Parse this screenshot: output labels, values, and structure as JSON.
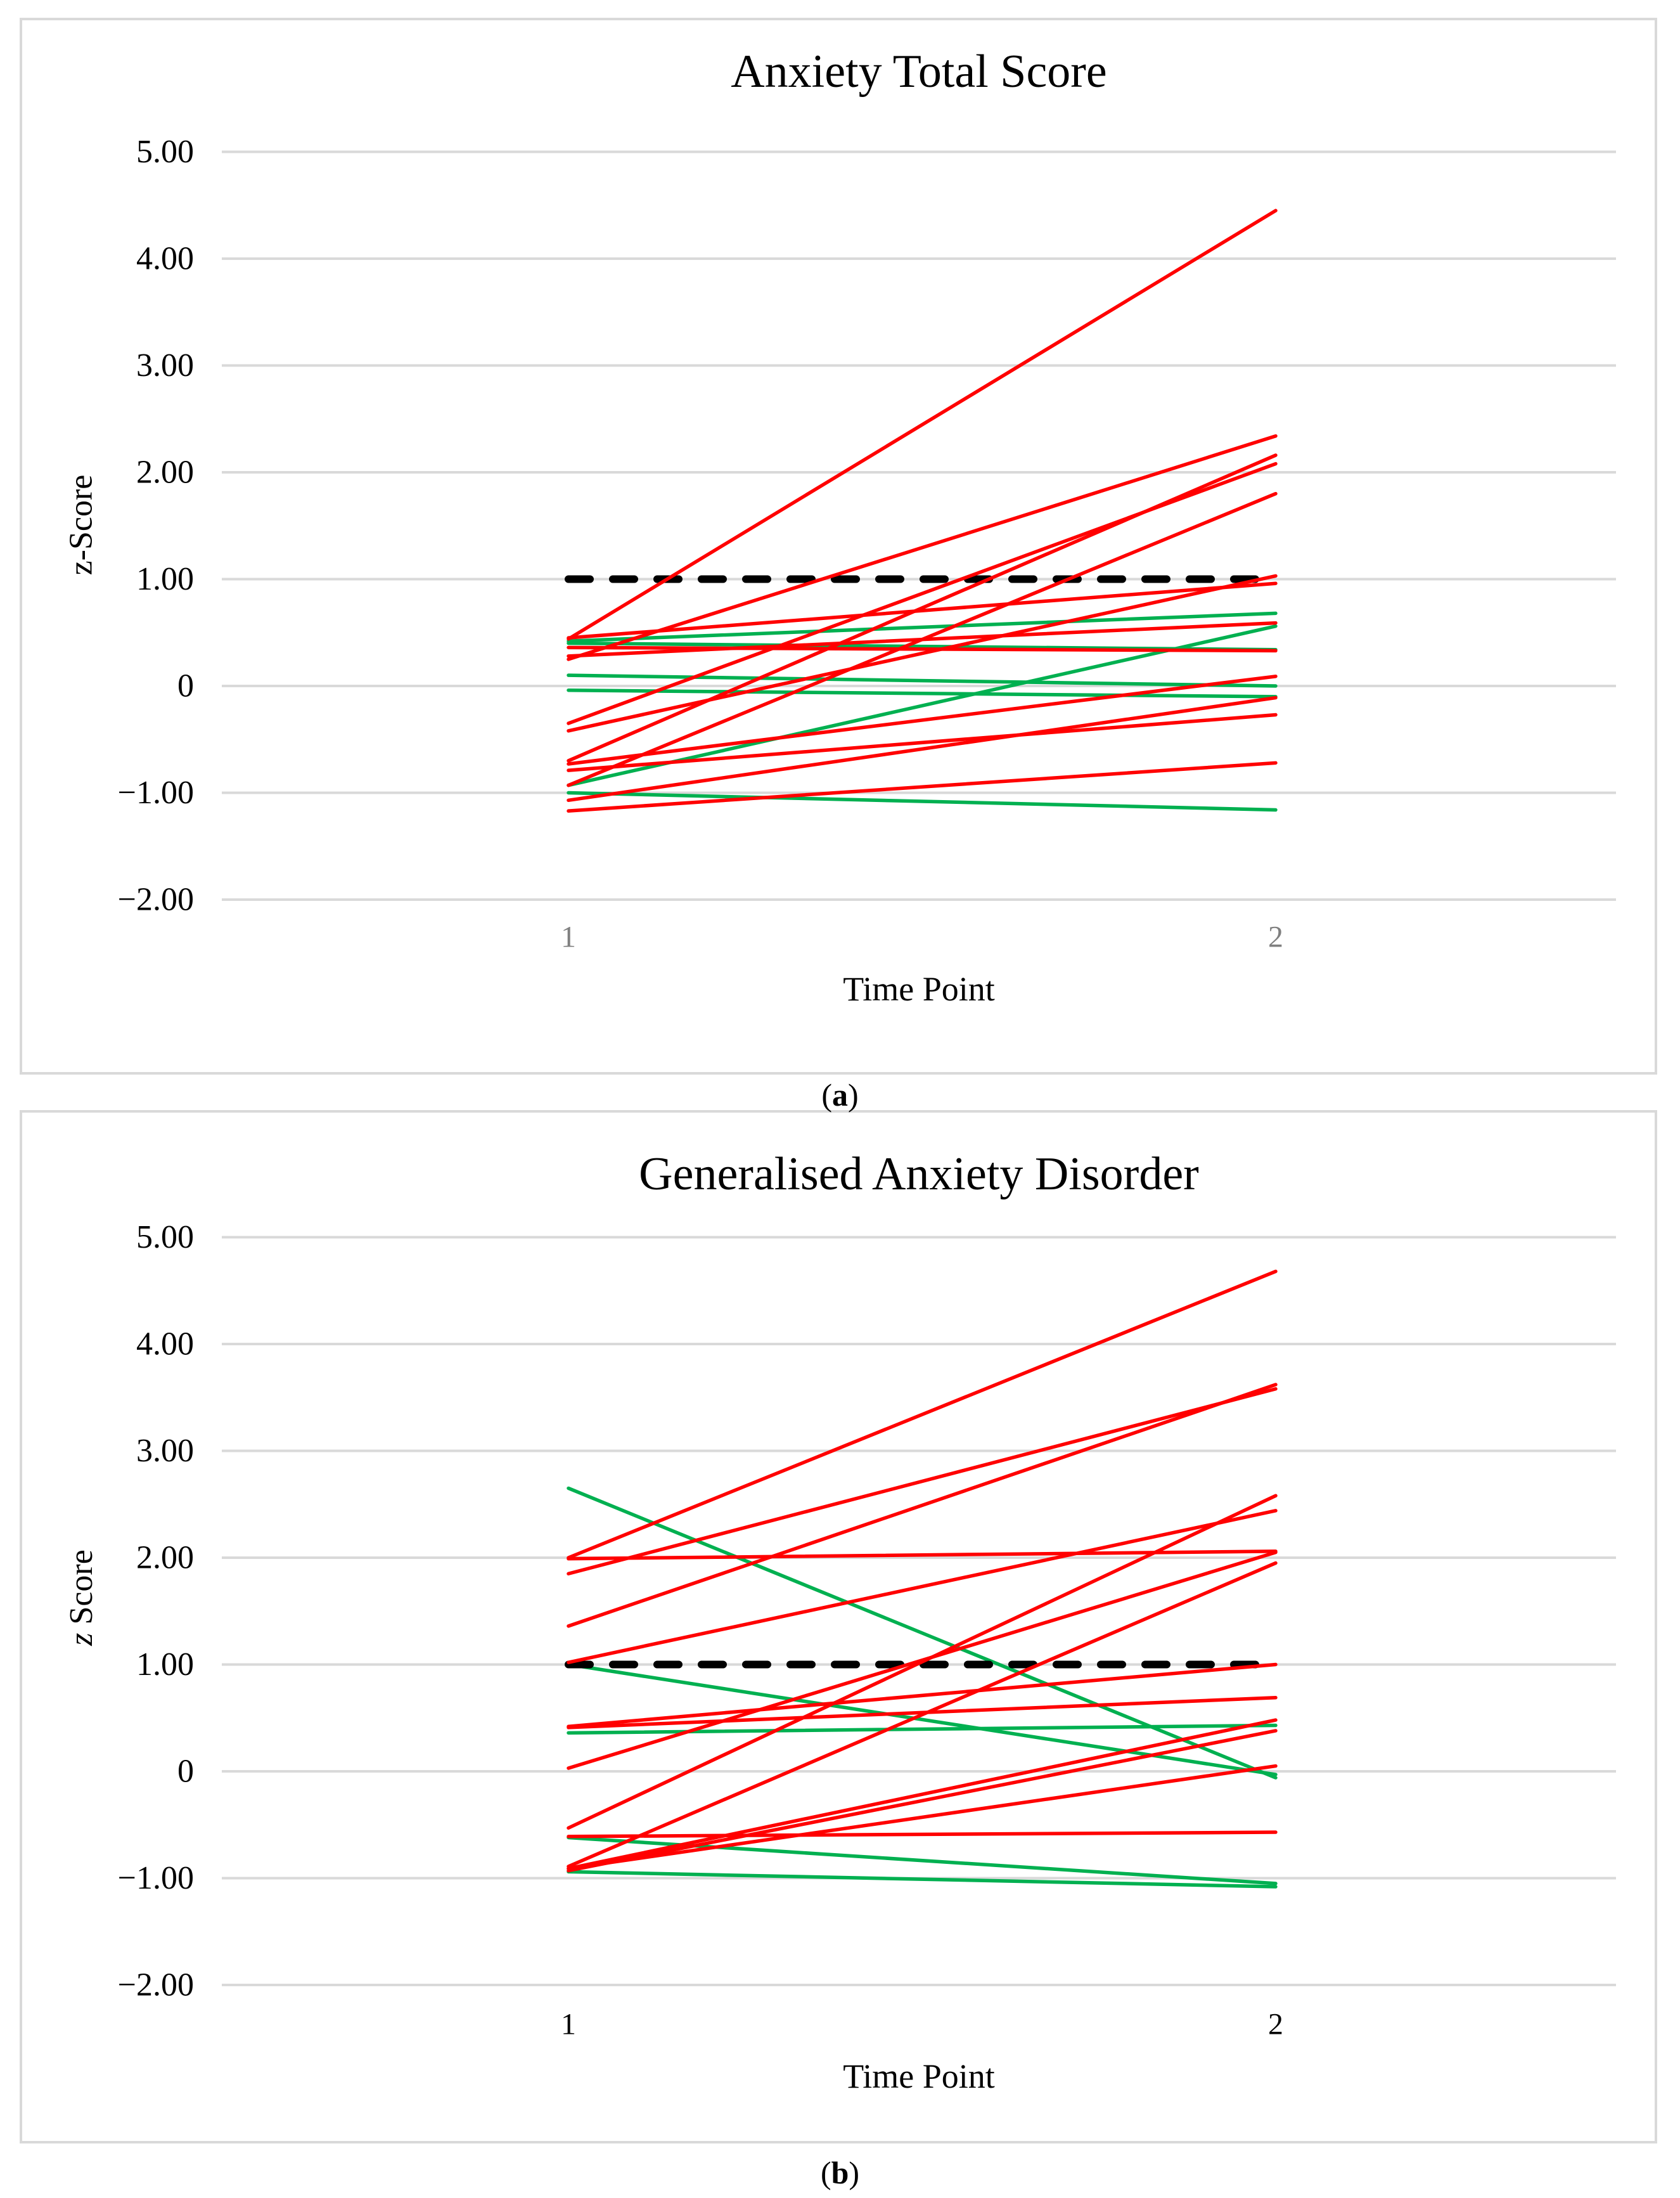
{
  "captions": {
    "a": "(a)",
    "b": "(b)"
  },
  "colors": {
    "red_series": "#FF0000",
    "green_series": "#00B050",
    "gridline": "#D9D9D9",
    "frame_border": "#D9D9D9",
    "threshold": "#000000",
    "x_tick_gray": "#7F7F7F",
    "text": "#000000",
    "background": "#FFFFFF"
  },
  "chart_data": [
    {
      "type": "line",
      "panel": "a",
      "title": "Anxiety Total Score",
      "xlabel": "Time Point",
      "ylabel": "z-Score",
      "ylabel_italic_z": false,
      "grid": true,
      "legend": false,
      "x_categories": [
        "1",
        "2"
      ],
      "x_tick_color": "#7F7F7F",
      "ylim": [
        -2,
        5
      ],
      "y_ticks": [
        {
          "label": "5.00",
          "value": 5
        },
        {
          "label": "4.00",
          "value": 4
        },
        {
          "label": "3.00",
          "value": 3
        },
        {
          "label": "2.00",
          "value": 2
        },
        {
          "label": "1.00",
          "value": 1
        },
        {
          "label": "0",
          "value": 0
        },
        {
          "label": "−1.00",
          "value": -1
        },
        {
          "label": "−2.00",
          "value": -2
        }
      ],
      "threshold_line": {
        "value": 1.0,
        "style": "dashed",
        "color": "#000000"
      },
      "series": [
        {
          "name": "red-lines",
          "color": "#FF0000",
          "points": [
            [
              0.44,
              4.45
            ],
            [
              0.45,
              0.96
            ],
            [
              0.36,
              0.33
            ],
            [
              0.28,
              0.59
            ],
            [
              0.25,
              2.34
            ],
            [
              -0.35,
              2.08
            ],
            [
              -0.42,
              1.03
            ],
            [
              -0.7,
              2.16
            ],
            [
              -0.73,
              0.09
            ],
            [
              -0.79,
              -0.27
            ],
            [
              -0.93,
              1.8
            ],
            [
              -1.07,
              -0.11
            ],
            [
              -1.17,
              -0.72
            ]
          ]
        },
        {
          "name": "green-lines",
          "color": "#00B050",
          "points": [
            [
              0.42,
              0.68
            ],
            [
              0.4,
              0.34
            ],
            [
              0.1,
              0.0
            ],
            [
              -0.04,
              -0.1
            ],
            [
              -0.93,
              0.56
            ],
            [
              -1.0,
              -1.16
            ]
          ]
        }
      ]
    },
    {
      "type": "line",
      "panel": "b",
      "title": "Generalised Anxiety Disorder",
      "xlabel": "Time Point",
      "ylabel": "z Score",
      "ylabel_italic_z": true,
      "grid": true,
      "legend": false,
      "x_categories": [
        "1",
        "2"
      ],
      "x_tick_color": "#000000",
      "ylim": [
        -2,
        5
      ],
      "y_ticks": [
        {
          "label": "5.00",
          "value": 5
        },
        {
          "label": "4.00",
          "value": 4
        },
        {
          "label": "3.00",
          "value": 3
        },
        {
          "label": "2.00",
          "value": 2
        },
        {
          "label": "1.00",
          "value": 1
        },
        {
          "label": "0",
          "value": 0
        },
        {
          "label": "−1.00",
          "value": -1
        },
        {
          "label": "−2.00",
          "value": -2
        }
      ],
      "threshold_line": {
        "value": 1.0,
        "style": "dashed",
        "color": "#000000"
      },
      "series": [
        {
          "name": "red-lines",
          "color": "#FF0000",
          "points": [
            [
              2.0,
              4.68
            ],
            [
              1.99,
              2.06
            ],
            [
              1.85,
              3.58
            ],
            [
              1.36,
              3.62
            ],
            [
              1.02,
              2.44
            ],
            [
              0.42,
              1.0
            ],
            [
              0.41,
              0.69
            ],
            [
              0.03,
              2.05
            ],
            [
              -0.53,
              2.58
            ],
            [
              -0.61,
              -0.57
            ],
            [
              -0.89,
              1.95
            ],
            [
              -0.91,
              0.48
            ],
            [
              -0.93,
              0.38
            ],
            [
              -0.91,
              0.05
            ]
          ]
        },
        {
          "name": "green-lines",
          "color": "#00B050",
          "points": [
            [
              2.65,
              -0.06
            ],
            [
              1.0,
              -0.03
            ],
            [
              0.36,
              0.43
            ],
            [
              -0.62,
              -1.05
            ],
            [
              -0.94,
              -1.08
            ]
          ]
        }
      ]
    }
  ]
}
